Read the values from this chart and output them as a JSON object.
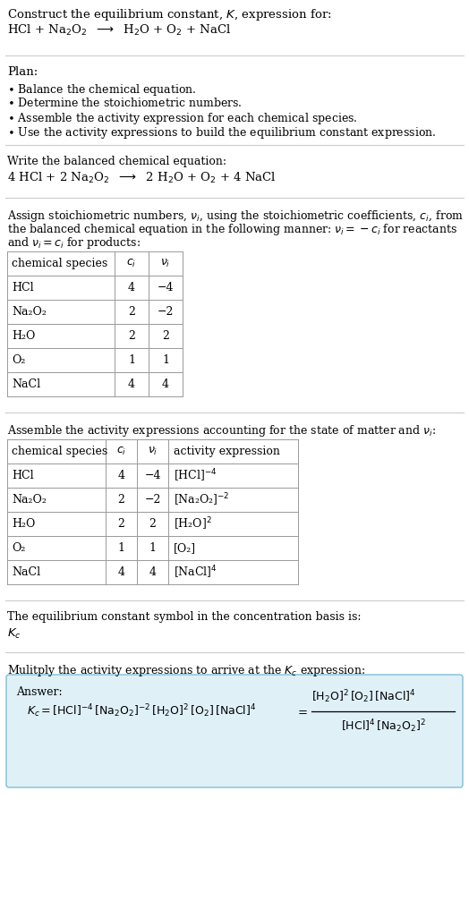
{
  "bg_color": "#ffffff",
  "fs_main": 9.5,
  "fs_small": 9.0,
  "table1_headers": [
    "chemical species",
    "c_i",
    "nu_i"
  ],
  "table1_rows": [
    [
      "HCl",
      "4",
      "−4"
    ],
    [
      "Na₂O₂",
      "2",
      "−2"
    ],
    [
      "H₂O",
      "2",
      "2"
    ],
    [
      "O₂",
      "1",
      "1"
    ],
    [
      "NaCl",
      "4",
      "4"
    ]
  ],
  "table2_headers": [
    "chemical species",
    "c_i",
    "nu_i",
    "activity expression"
  ],
  "table2_rows": [
    [
      "HCl",
      "4",
      "−4",
      "[HCl]$^{-4}$"
    ],
    [
      "Na₂O₂",
      "2",
      "−2",
      "[Na₂O₂]$^{-2}$"
    ],
    [
      "H₂O",
      "2",
      "2",
      "[H₂O]$^2$"
    ],
    [
      "O₂",
      "1",
      "1",
      "[O₂]"
    ],
    [
      "NaCl",
      "4",
      "4",
      "[NaCl]$^4$"
    ]
  ],
  "answer_box_color": "#dff0f7",
  "answer_border_color": "#7fbfd4"
}
